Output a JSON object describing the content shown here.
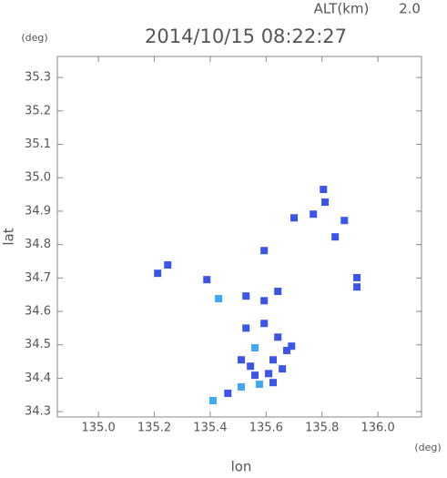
{
  "chart_data": {
    "type": "scatter",
    "title": "2014/10/15 08:22:27",
    "altitude_label": "ALT(km)",
    "altitude": 2.0,
    "y_unit": "(deg)",
    "x_unit": "(deg)",
    "xlabel": "lon",
    "ylabel": "lat",
    "xlim": [
      134.853,
      136.156
    ],
    "ylim": [
      34.284,
      35.363
    ],
    "xticks": [
      {
        "value": 135.0,
        "label": "135.0"
      },
      135.2,
      135.4,
      135.6,
      135.8,
      {
        "value": 136.0,
        "label": "136.0"
      }
    ],
    "yticks": [
      34.3,
      34.4,
      34.5,
      34.6,
      34.7,
      34.8,
      34.9,
      {
        "value": 35.0,
        "label": "35.0"
      },
      35.1,
      35.2,
      35.3
    ],
    "series": [
      {
        "color": "#3a55e8",
        "x": [
          135.805,
          135.811,
          135.769,
          135.88,
          135.847,
          135.7,
          135.925,
          135.925,
          135.248,
          135.212,
          135.388,
          135.528,
          135.593,
          135.642,
          135.593,
          135.593,
          135.625,
          135.674,
          135.691,
          135.658,
          135.609,
          135.56,
          135.544,
          135.625,
          135.463,
          135.511,
          135.642,
          135.528
        ],
        "y": [
          34.965,
          34.927,
          34.891,
          34.872,
          34.823,
          34.88,
          34.701,
          34.673,
          34.739,
          34.714,
          34.695,
          34.646,
          34.632,
          34.66,
          34.564,
          34.782,
          34.455,
          34.483,
          34.496,
          34.428,
          34.414,
          34.409,
          34.436,
          34.387,
          34.355,
          34.455,
          34.523,
          34.55
        ]
      },
      {
        "color": "#3fa8f0",
        "x": [
          135.43,
          135.56,
          135.511,
          135.576,
          135.41
        ],
        "y": [
          34.638,
          34.491,
          34.374,
          34.382,
          34.333
        ]
      }
    ]
  }
}
